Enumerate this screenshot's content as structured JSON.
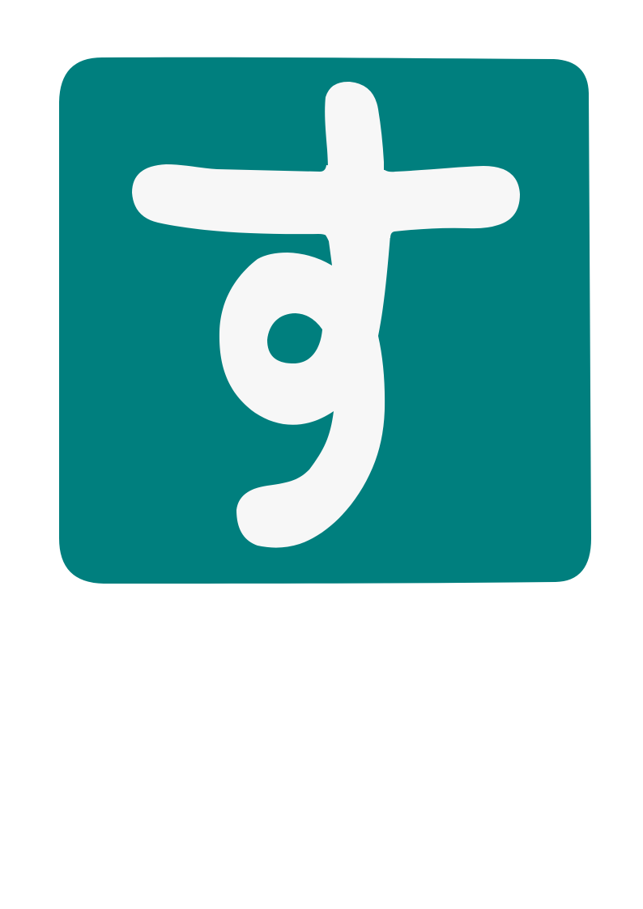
{
  "card": {
    "glyph": "す",
    "background_color": "#007f7e",
    "glyph_color": "#f7f7f7",
    "page_color": "#ffffff"
  }
}
